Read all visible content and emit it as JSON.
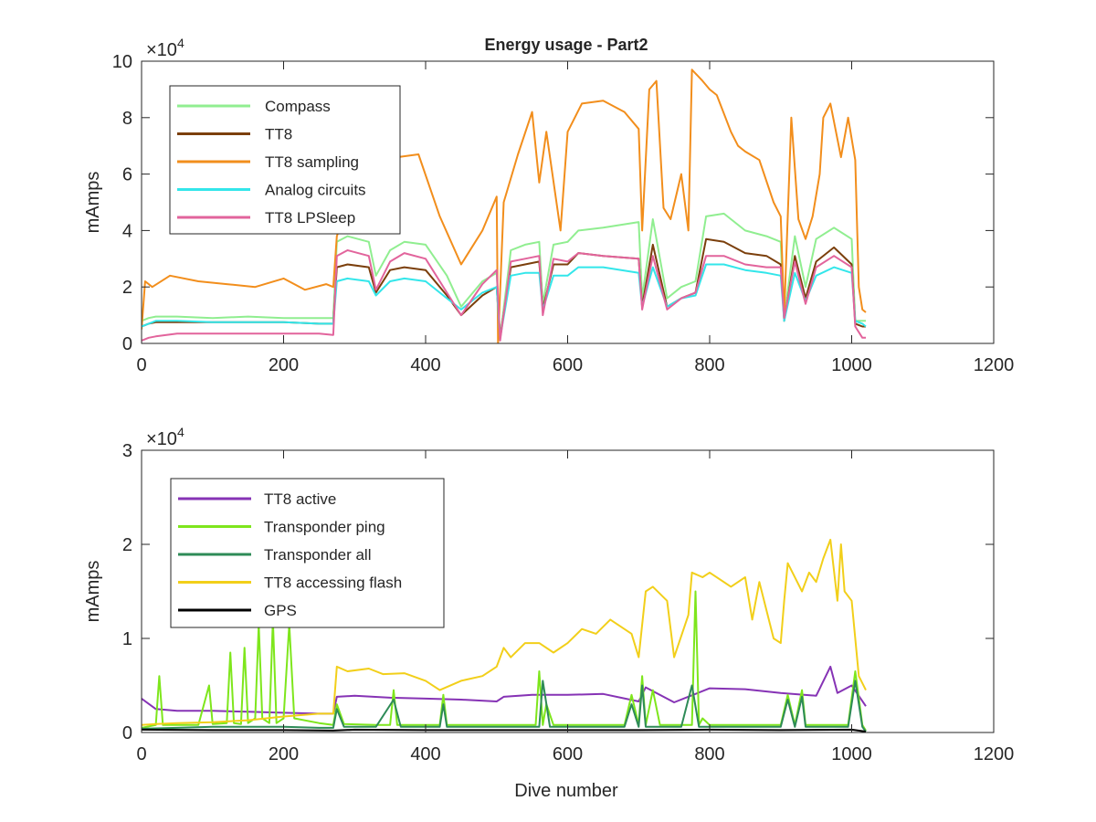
{
  "figure": {
    "title": "Energy usage - Part2",
    "xlabel": "Dive number"
  },
  "chart_data": [
    {
      "type": "line",
      "title": "Energy usage - Part2",
      "xlabel": "",
      "ylabel": "mAmps",
      "xlim": [
        0,
        1200
      ],
      "ylim": [
        0,
        100000
      ],
      "xticks": [
        0,
        200,
        400,
        600,
        800,
        1000,
        1200
      ],
      "xtick_labels": [
        "0",
        "200",
        "400",
        "600",
        "800",
        "1000",
        "1200"
      ],
      "yticks": [
        0,
        20000,
        40000,
        60000,
        80000,
        100000
      ],
      "ytick_labels": [
        "0",
        "2",
        "4",
        "6",
        "8",
        "10"
      ],
      "exponent_label": "×10",
      "exponent_power": "4",
      "grid": false,
      "legend_position": "top-left",
      "series": [
        {
          "name": "Compass",
          "color": "#90ee90",
          "x": [
            0,
            10,
            20,
            50,
            100,
            150,
            200,
            250,
            270,
            275,
            290,
            320,
            330,
            350,
            370,
            400,
            430,
            450,
            480,
            500,
            505,
            520,
            540,
            560,
            565,
            580,
            600,
            615,
            650,
            700,
            705,
            720,
            740,
            760,
            780,
            795,
            820,
            850,
            880,
            900,
            905,
            920,
            935,
            950,
            975,
            1000,
            1005,
            1015,
            1020
          ],
          "y": [
            8000,
            9000,
            9500,
            9500,
            9000,
            9500,
            9000,
            9000,
            9000,
            36000,
            38000,
            36000,
            24000,
            33000,
            36000,
            35000,
            24000,
            13000,
            22000,
            25000,
            2000,
            33000,
            35000,
            36000,
            14000,
            35000,
            36000,
            40000,
            41000,
            43000,
            16000,
            44000,
            16000,
            20000,
            22000,
            45000,
            46000,
            40000,
            38000,
            36000,
            9000,
            38000,
            20000,
            37000,
            41000,
            37000,
            8000,
            8000,
            8000
          ]
        },
        {
          "name": "TT8",
          "color": "#7b3f0c",
          "x": [
            0,
            10,
            20,
            50,
            100,
            150,
            200,
            250,
            270,
            275,
            290,
            320,
            330,
            350,
            370,
            400,
            430,
            450,
            480,
            500,
            505,
            520,
            540,
            560,
            565,
            580,
            600,
            615,
            650,
            700,
            705,
            720,
            740,
            760,
            780,
            795,
            820,
            850,
            880,
            900,
            905,
            920,
            935,
            950,
            975,
            1000,
            1005,
            1015,
            1020
          ],
          "y": [
            6000,
            7000,
            7500,
            7500,
            7500,
            7500,
            7500,
            7000,
            7000,
            27000,
            28000,
            27000,
            18000,
            26000,
            27000,
            26000,
            17000,
            10000,
            17000,
            20000,
            2000,
            27000,
            28000,
            29000,
            12000,
            28000,
            28000,
            32000,
            31000,
            30000,
            13000,
            35000,
            13000,
            16000,
            18000,
            37000,
            36000,
            32000,
            31000,
            28000,
            8000,
            31000,
            16000,
            29000,
            34000,
            28000,
            7000,
            6000,
            6000
          ]
        },
        {
          "name": "TT8 sampling",
          "color": "#f28e1c",
          "x": [
            0,
            5,
            15,
            40,
            80,
            120,
            160,
            200,
            230,
            260,
            270,
            275,
            300,
            330,
            360,
            390,
            420,
            450,
            480,
            500,
            502,
            510,
            530,
            550,
            560,
            570,
            590,
            600,
            620,
            650,
            680,
            700,
            705,
            715,
            725,
            735,
            745,
            760,
            770,
            775,
            790,
            800,
            810,
            830,
            840,
            850,
            870,
            890,
            900,
            905,
            915,
            925,
            935,
            945,
            955,
            960,
            970,
            985,
            995,
            1005,
            1010,
            1015,
            1020
          ],
          "y": [
            5000,
            22000,
            20000,
            24000,
            22000,
            21000,
            20000,
            23000,
            19000,
            21000,
            20000,
            38000,
            55000,
            60000,
            66000,
            67000,
            45000,
            28000,
            40000,
            52000,
            0,
            50000,
            67000,
            82000,
            57000,
            75000,
            40000,
            75000,
            85000,
            86000,
            82000,
            76000,
            40000,
            90000,
            93000,
            48000,
            44000,
            60000,
            40000,
            97000,
            93000,
            90000,
            88000,
            75000,
            70000,
            68000,
            65000,
            50000,
            45000,
            10000,
            80000,
            44000,
            37000,
            45000,
            60000,
            80000,
            85000,
            66000,
            80000,
            65000,
            20000,
            12000,
            11000
          ]
        },
        {
          "name": "Analog circuits",
          "color": "#33e6ea",
          "x": [
            0,
            10,
            20,
            50,
            100,
            150,
            200,
            250,
            270,
            275,
            290,
            320,
            330,
            350,
            370,
            400,
            430,
            450,
            480,
            500,
            505,
            520,
            540,
            560,
            565,
            580,
            600,
            615,
            650,
            700,
            705,
            720,
            740,
            760,
            780,
            795,
            820,
            850,
            880,
            900,
            905,
            920,
            935,
            950,
            975,
            1000,
            1005,
            1015,
            1020
          ],
          "y": [
            6000,
            7000,
            8000,
            8000,
            7500,
            7500,
            7500,
            7000,
            7000,
            22000,
            23000,
            22000,
            17000,
            22000,
            23000,
            22000,
            16000,
            12000,
            18000,
            20000,
            2000,
            24000,
            25000,
            25000,
            12000,
            24000,
            24000,
            27000,
            27000,
            25000,
            13000,
            27000,
            13000,
            16000,
            17000,
            28000,
            28000,
            26000,
            25000,
            24000,
            8000,
            25000,
            15000,
            24000,
            27000,
            25000,
            8000,
            7000,
            6000
          ]
        },
        {
          "name": "TT8 LPSleep",
          "color": "#e2649c",
          "x": [
            0,
            10,
            20,
            50,
            100,
            150,
            200,
            250,
            270,
            275,
            290,
            320,
            330,
            350,
            370,
            400,
            430,
            450,
            480,
            500,
            505,
            520,
            540,
            560,
            565,
            580,
            600,
            615,
            650,
            700,
            705,
            720,
            740,
            760,
            780,
            795,
            820,
            850,
            880,
            900,
            905,
            920,
            935,
            950,
            975,
            1000,
            1005,
            1015,
            1020
          ],
          "y": [
            1000,
            2000,
            2500,
            3500,
            3500,
            3500,
            3500,
            3500,
            3000,
            31000,
            33000,
            31000,
            19000,
            29000,
            32000,
            30000,
            18000,
            10000,
            21000,
            26000,
            1000,
            29000,
            30000,
            31000,
            10000,
            30000,
            29000,
            32000,
            31000,
            30000,
            12000,
            31000,
            12000,
            16000,
            18000,
            31000,
            31000,
            28000,
            27000,
            27000,
            9000,
            29000,
            14000,
            27000,
            31000,
            27000,
            6000,
            2000,
            2000
          ]
        }
      ]
    },
    {
      "type": "line",
      "title": "",
      "xlabel": "Dive number",
      "ylabel": "mAmps",
      "xlim": [
        0,
        1200
      ],
      "ylim": [
        0,
        30000
      ],
      "xticks": [
        0,
        200,
        400,
        600,
        800,
        1000,
        1200
      ],
      "xtick_labels": [
        "0",
        "200",
        "400",
        "600",
        "800",
        "1000",
        "1200"
      ],
      "yticks": [
        0,
        10000,
        20000,
        30000
      ],
      "ytick_labels": [
        "0",
        "1",
        "2",
        "3"
      ],
      "exponent_label": "×10",
      "exponent_power": "4",
      "grid": false,
      "legend_position": "top-left",
      "series": [
        {
          "name": "TT8 active",
          "color": "#8633b5",
          "x": [
            0,
            20,
            50,
            100,
            150,
            200,
            250,
            270,
            275,
            300,
            350,
            400,
            450,
            500,
            510,
            550,
            600,
            650,
            700,
            710,
            750,
            800,
            850,
            900,
            950,
            970,
            980,
            1000,
            1020
          ],
          "y": [
            3600,
            2500,
            2300,
            2300,
            2200,
            2100,
            2000,
            2000,
            3800,
            3900,
            3700,
            3600,
            3500,
            3300,
            3800,
            4000,
            4000,
            4100,
            3300,
            4800,
            3200,
            4700,
            4600,
            4200,
            3900,
            7000,
            4200,
            5000,
            2800
          ]
        },
        {
          "name": "Transponder ping",
          "color": "#7ee61c",
          "x": [
            0,
            20,
            25,
            30,
            80,
            95,
            100,
            120,
            125,
            130,
            140,
            145,
            150,
            160,
            165,
            170,
            180,
            185,
            190,
            200,
            208,
            215,
            250,
            270,
            275,
            285,
            330,
            350,
            355,
            360,
            420,
            425,
            430,
            500,
            555,
            560,
            565,
            570,
            580,
            680,
            690,
            700,
            705,
            710,
            720,
            730,
            760,
            775,
            780,
            785,
            790,
            800,
            900,
            910,
            920,
            930,
            935,
            945,
            995,
            1005,
            1015,
            1020
          ],
          "y": [
            500,
            800,
            6000,
            800,
            800,
            5000,
            900,
            1000,
            8500,
            1000,
            900,
            9000,
            1000,
            1500,
            11500,
            1500,
            1000,
            12000,
            1000,
            1500,
            11500,
            1500,
            1000,
            800,
            3000,
            900,
            800,
            800,
            4500,
            800,
            800,
            4000,
            800,
            800,
            800,
            6500,
            800,
            3000,
            800,
            800,
            4000,
            800,
            6000,
            800,
            4500,
            800,
            800,
            800,
            15000,
            800,
            1500,
            800,
            800,
            4000,
            800,
            4500,
            800,
            800,
            800,
            6500,
            800,
            200
          ]
        },
        {
          "name": "Transponder all",
          "color": "#2e8b57",
          "x": [
            0,
            50,
            100,
            150,
            200,
            250,
            270,
            275,
            285,
            330,
            355,
            365,
            420,
            425,
            430,
            560,
            565,
            575,
            680,
            690,
            700,
            705,
            710,
            760,
            775,
            785,
            900,
            910,
            920,
            930,
            935,
            945,
            995,
            1005,
            1015,
            1020
          ],
          "y": [
            400,
            500,
            600,
            600,
            600,
            500,
            500,
            2500,
            600,
            600,
            3500,
            600,
            600,
            3000,
            600,
            600,
            5500,
            600,
            600,
            3000,
            600,
            5000,
            600,
            600,
            5000,
            600,
            600,
            3500,
            600,
            3800,
            600,
            600,
            600,
            5500,
            600,
            100
          ]
        },
        {
          "name": "TT8 accessing flash",
          "color": "#f2cf1a",
          "x": [
            0,
            20,
            50,
            100,
            150,
            200,
            250,
            270,
            275,
            290,
            320,
            340,
            370,
            400,
            420,
            450,
            480,
            500,
            510,
            520,
            540,
            560,
            580,
            600,
            620,
            640,
            660,
            690,
            700,
            710,
            720,
            740,
            750,
            770,
            775,
            790,
            800,
            830,
            850,
            860,
            870,
            880,
            890,
            900,
            905,
            910,
            930,
            940,
            950,
            960,
            970,
            980,
            985,
            990,
            1000,
            1010,
            1020
          ],
          "y": [
            800,
            900,
            1000,
            1100,
            1300,
            1700,
            2000,
            2000,
            7000,
            6500,
            6800,
            6200,
            6300,
            5500,
            4500,
            5500,
            6000,
            7000,
            9000,
            8000,
            9500,
            9500,
            8500,
            9500,
            11000,
            10500,
            12000,
            10500,
            8000,
            15000,
            15500,
            14000,
            8000,
            12500,
            17000,
            16500,
            17000,
            15500,
            16500,
            12000,
            16000,
            13000,
            10000,
            9500,
            14000,
            18000,
            15000,
            17000,
            16000,
            18500,
            20500,
            14000,
            20000,
            15000,
            14000,
            6000,
            4500
          ]
        },
        {
          "name": "GPS",
          "color": "#000000",
          "x": [
            0,
            100,
            200,
            270,
            300,
            400,
            500,
            600,
            700,
            800,
            900,
            1000,
            1020
          ],
          "y": [
            300,
            250,
            250,
            200,
            300,
            250,
            250,
            250,
            250,
            300,
            250,
            300,
            100
          ]
        }
      ]
    }
  ]
}
